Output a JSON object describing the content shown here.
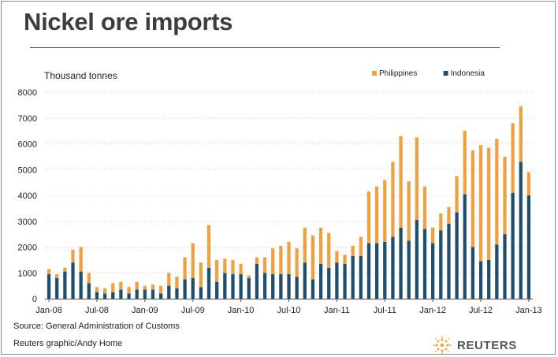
{
  "header": {
    "title": "Nickel ore imports"
  },
  "footer": {
    "source": "Source: General Administration of Customs",
    "credit": "Reuters graphic/Andy Home",
    "logo_text": "REUTERS"
  },
  "colors": {
    "philippines": "#f0a041",
    "indonesia": "#1f4e6e",
    "logo_accent": "#f0a041"
  },
  "chart_data": {
    "type": "bar",
    "stacked": true,
    "title": "Nickel ore imports",
    "ylabel": "Thousand tonnes",
    "ylim": [
      0,
      8000
    ],
    "yticks": [
      0,
      1000,
      2000,
      3000,
      4000,
      5000,
      6000,
      7000,
      8000
    ],
    "grid": true,
    "legend_position": "top-right",
    "categories": [
      "Jan-08",
      "Feb-08",
      "Mar-08",
      "Apr-08",
      "May-08",
      "Jun-08",
      "Jul-08",
      "Aug-08",
      "Sep-08",
      "Oct-08",
      "Nov-08",
      "Dec-08",
      "Jan-09",
      "Feb-09",
      "Mar-09",
      "Apr-09",
      "May-09",
      "Jun-09",
      "Jul-09",
      "Aug-09",
      "Sep-09",
      "Oct-09",
      "Nov-09",
      "Dec-09",
      "Jan-10",
      "Feb-10",
      "Mar-10",
      "Apr-10",
      "May-10",
      "Jun-10",
      "Jul-10",
      "Aug-10",
      "Sep-10",
      "Oct-10",
      "Nov-10",
      "Dec-10",
      "Jan-11",
      "Feb-11",
      "Mar-11",
      "Apr-11",
      "May-11",
      "Jun-11",
      "Jul-11",
      "Aug-11",
      "Sep-11",
      "Oct-11",
      "Nov-11",
      "Dec-11",
      "Jan-12",
      "Feb-12",
      "Mar-12",
      "Apr-12",
      "May-12",
      "Jun-12",
      "Jul-12",
      "Aug-12",
      "Sep-12",
      "Oct-12",
      "Nov-12",
      "Dec-12",
      "Jan-13"
    ],
    "x_tick_labels": [
      "Jan-08",
      "Jul-08",
      "Jan-09",
      "Jul-09",
      "Jan-10",
      "Jul-10",
      "Jan-11",
      "Jul-11",
      "Jan-12",
      "Jul-12",
      "Jan-13"
    ],
    "series": [
      {
        "name": "Indonesia",
        "color": "#1f4e6e",
        "values": [
          950,
          800,
          1050,
          1400,
          1050,
          600,
          250,
          200,
          250,
          350,
          200,
          350,
          350,
          350,
          200,
          500,
          400,
          750,
          800,
          450,
          1200,
          650,
          1000,
          950,
          950,
          800,
          1350,
          1000,
          950,
          950,
          950,
          850,
          1400,
          750,
          1350,
          1200,
          1400,
          1350,
          1650,
          1650,
          2150,
          2150,
          2200,
          2400,
          2750,
          2250,
          3050,
          2700,
          2150,
          2650,
          2900,
          3350,
          4050,
          2000,
          1450,
          1500,
          2100,
          2500,
          4100,
          5300,
          4000
        ]
      },
      {
        "name": "Philippines",
        "color": "#f0a041",
        "values": [
          200,
          150,
          150,
          500,
          950,
          400,
          200,
          200,
          350,
          300,
          250,
          300,
          150,
          200,
          300,
          500,
          450,
          850,
          1350,
          950,
          1650,
          850,
          550,
          550,
          400,
          100,
          250,
          600,
          1000,
          1100,
          1250,
          1100,
          1350,
          1700,
          1400,
          1350,
          450,
          350,
          400,
          750,
          2000,
          2200,
          2400,
          2900,
          3550,
          2300,
          3200,
          1650,
          600,
          650,
          650,
          1400,
          2450,
          3750,
          4500,
          4350,
          4100,
          3000,
          2700,
          2150,
          900
        ]
      }
    ]
  }
}
